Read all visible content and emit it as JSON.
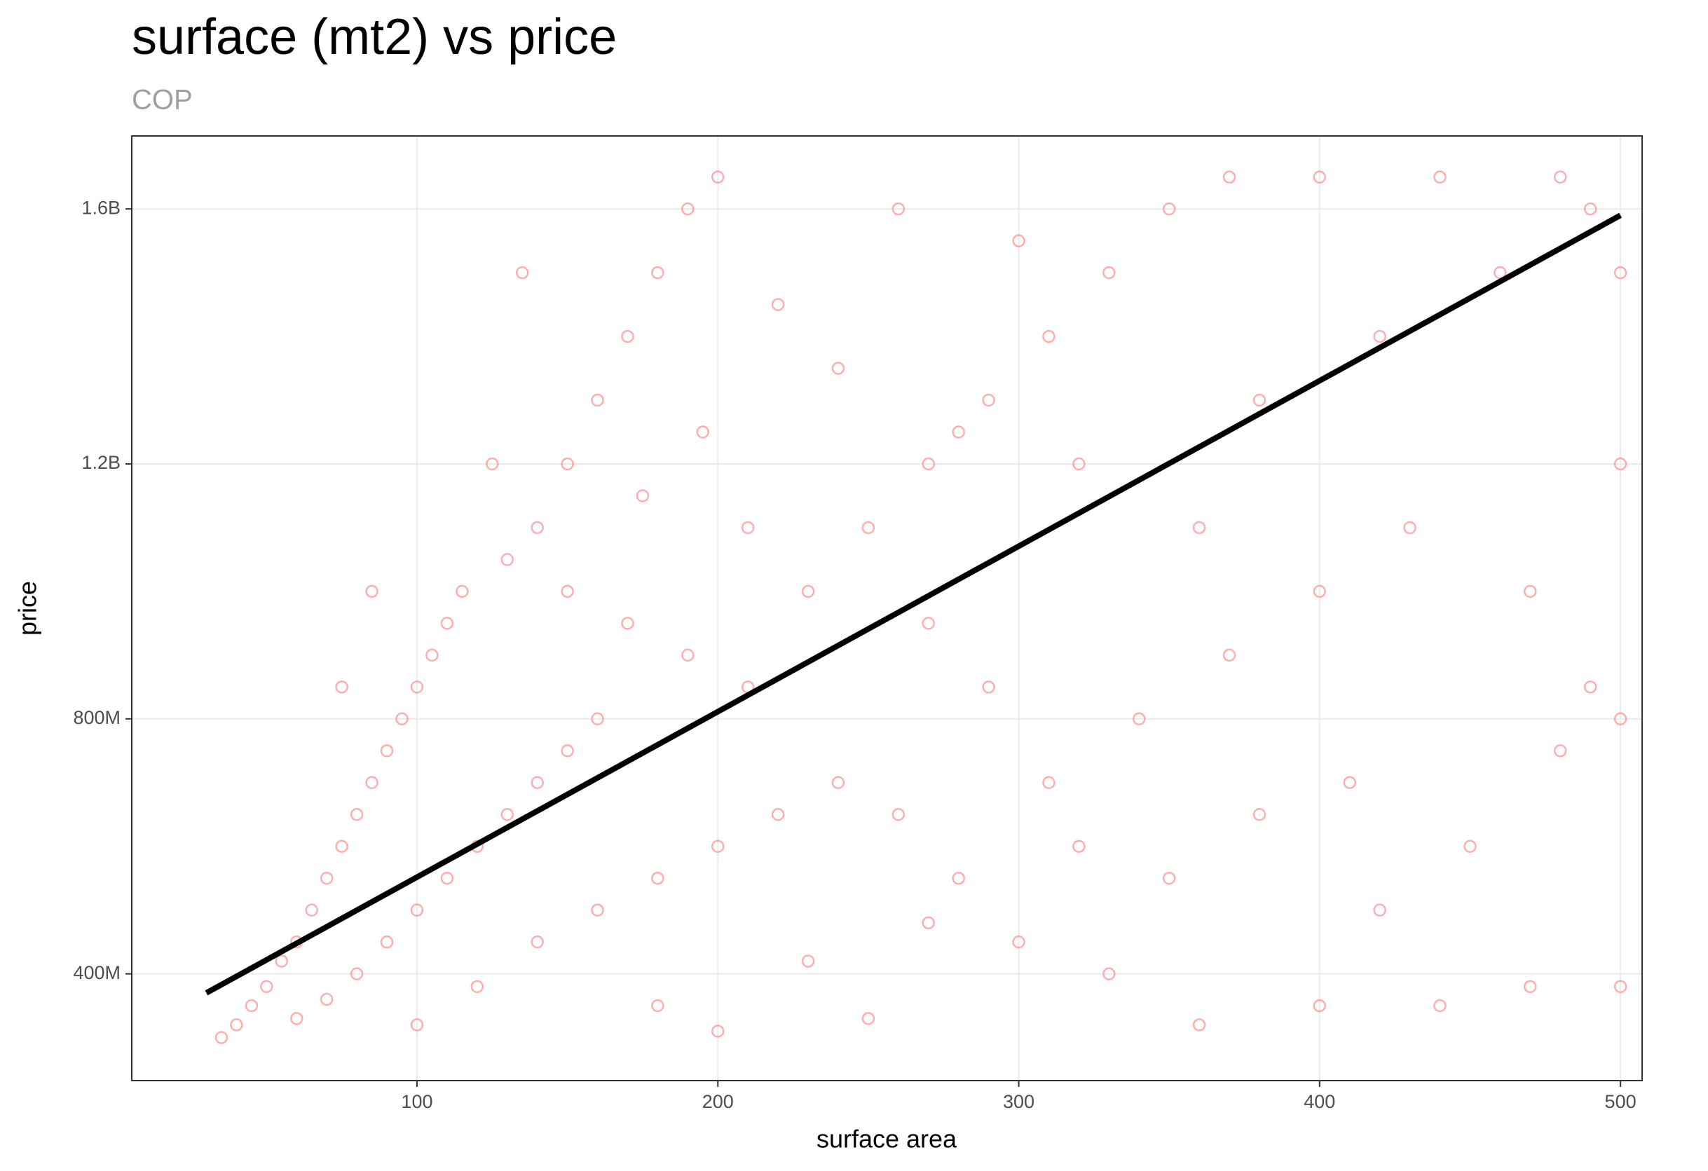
{
  "chart_data": {
    "type": "scatter",
    "title": "surface (mt2) vs price",
    "subtitle": "COP",
    "x_label": "surface area",
    "y_label": "price",
    "color": "#ff6b6b",
    "grid": true,
    "xlim": [
      5.2,
      507.2
    ],
    "xticks": [
      100,
      200,
      300,
      400,
      500
    ],
    "ylim": [
      232500000,
      1714500000
    ],
    "yticks": [
      {
        "value": 400000000,
        "label": "400M"
      },
      {
        "value": 800000000,
        "label": "800M"
      },
      {
        "value": 1200000000,
        "label": "1.2B"
      },
      {
        "value": 1600000000,
        "label": "1.6B"
      }
    ],
    "x": [
      35,
      40,
      45,
      50,
      55,
      60,
      65,
      70,
      75,
      80,
      85,
      90,
      95,
      100,
      105,
      110,
      115,
      60,
      70,
      80,
      90,
      100,
      110,
      120,
      130,
      140,
      150,
      160,
      100,
      120,
      140,
      160,
      180,
      200,
      220,
      240,
      130,
      140,
      150,
      160,
      170,
      180,
      190,
      200,
      150,
      170,
      190,
      210,
      230,
      250,
      270,
      290,
      310,
      330,
      350,
      370,
      400,
      440,
      480,
      260,
      300,
      220,
      240,
      280,
      320,
      360,
      380,
      420,
      460,
      490,
      500,
      500,
      500,
      480,
      450,
      420,
      400,
      360,
      330,
      300,
      280,
      260,
      310,
      340,
      370,
      400,
      430,
      470,
      490,
      350,
      380,
      410,
      440,
      470,
      500,
      250,
      200,
      180,
      230,
      270,
      320,
      290,
      270,
      210,
      195,
      175,
      135,
      125,
      85,
      75
    ],
    "y": [
      300000000,
      320000000,
      350000000,
      380000000,
      420000000,
      450000000,
      500000000,
      550000000,
      600000000,
      650000000,
      700000000,
      750000000,
      800000000,
      850000000,
      900000000,
      950000000,
      1000000000,
      330000000,
      360000000,
      400000000,
      450000000,
      500000000,
      550000000,
      600000000,
      650000000,
      700000000,
      750000000,
      800000000,
      320000000,
      380000000,
      450000000,
      500000000,
      550000000,
      600000000,
      650000000,
      700000000,
      1050000000,
      1100000000,
      1200000000,
      1300000000,
      1400000000,
      1500000000,
      1600000000,
      1650000000,
      1000000000,
      950000000,
      900000000,
      850000000,
      1000000000,
      1100000000,
      1200000000,
      1300000000,
      1400000000,
      1500000000,
      1600000000,
      1650000000,
      1650000000,
      1650000000,
      1650000000,
      1600000000,
      1550000000,
      1450000000,
      1350000000,
      1250000000,
      1200000000,
      1100000000,
      1300000000,
      1400000000,
      1500000000,
      1600000000,
      1500000000,
      1200000000,
      800000000,
      750000000,
      600000000,
      500000000,
      350000000,
      320000000,
      400000000,
      450000000,
      550000000,
      650000000,
      700000000,
      800000000,
      900000000,
      1000000000,
      1100000000,
      1000000000,
      850000000,
      550000000,
      650000000,
      700000000,
      350000000,
      380000000,
      380000000,
      330000000,
      310000000,
      350000000,
      420000000,
      480000000,
      600000000,
      850000000,
      950000000,
      1100000000,
      1250000000,
      1150000000,
      1500000000,
      1200000000,
      1000000000,
      850000000
    ],
    "fit": {
      "x": [
        30,
        500
      ],
      "y": [
        370000000,
        1590000000
      ],
      "color": "#000000"
    }
  }
}
